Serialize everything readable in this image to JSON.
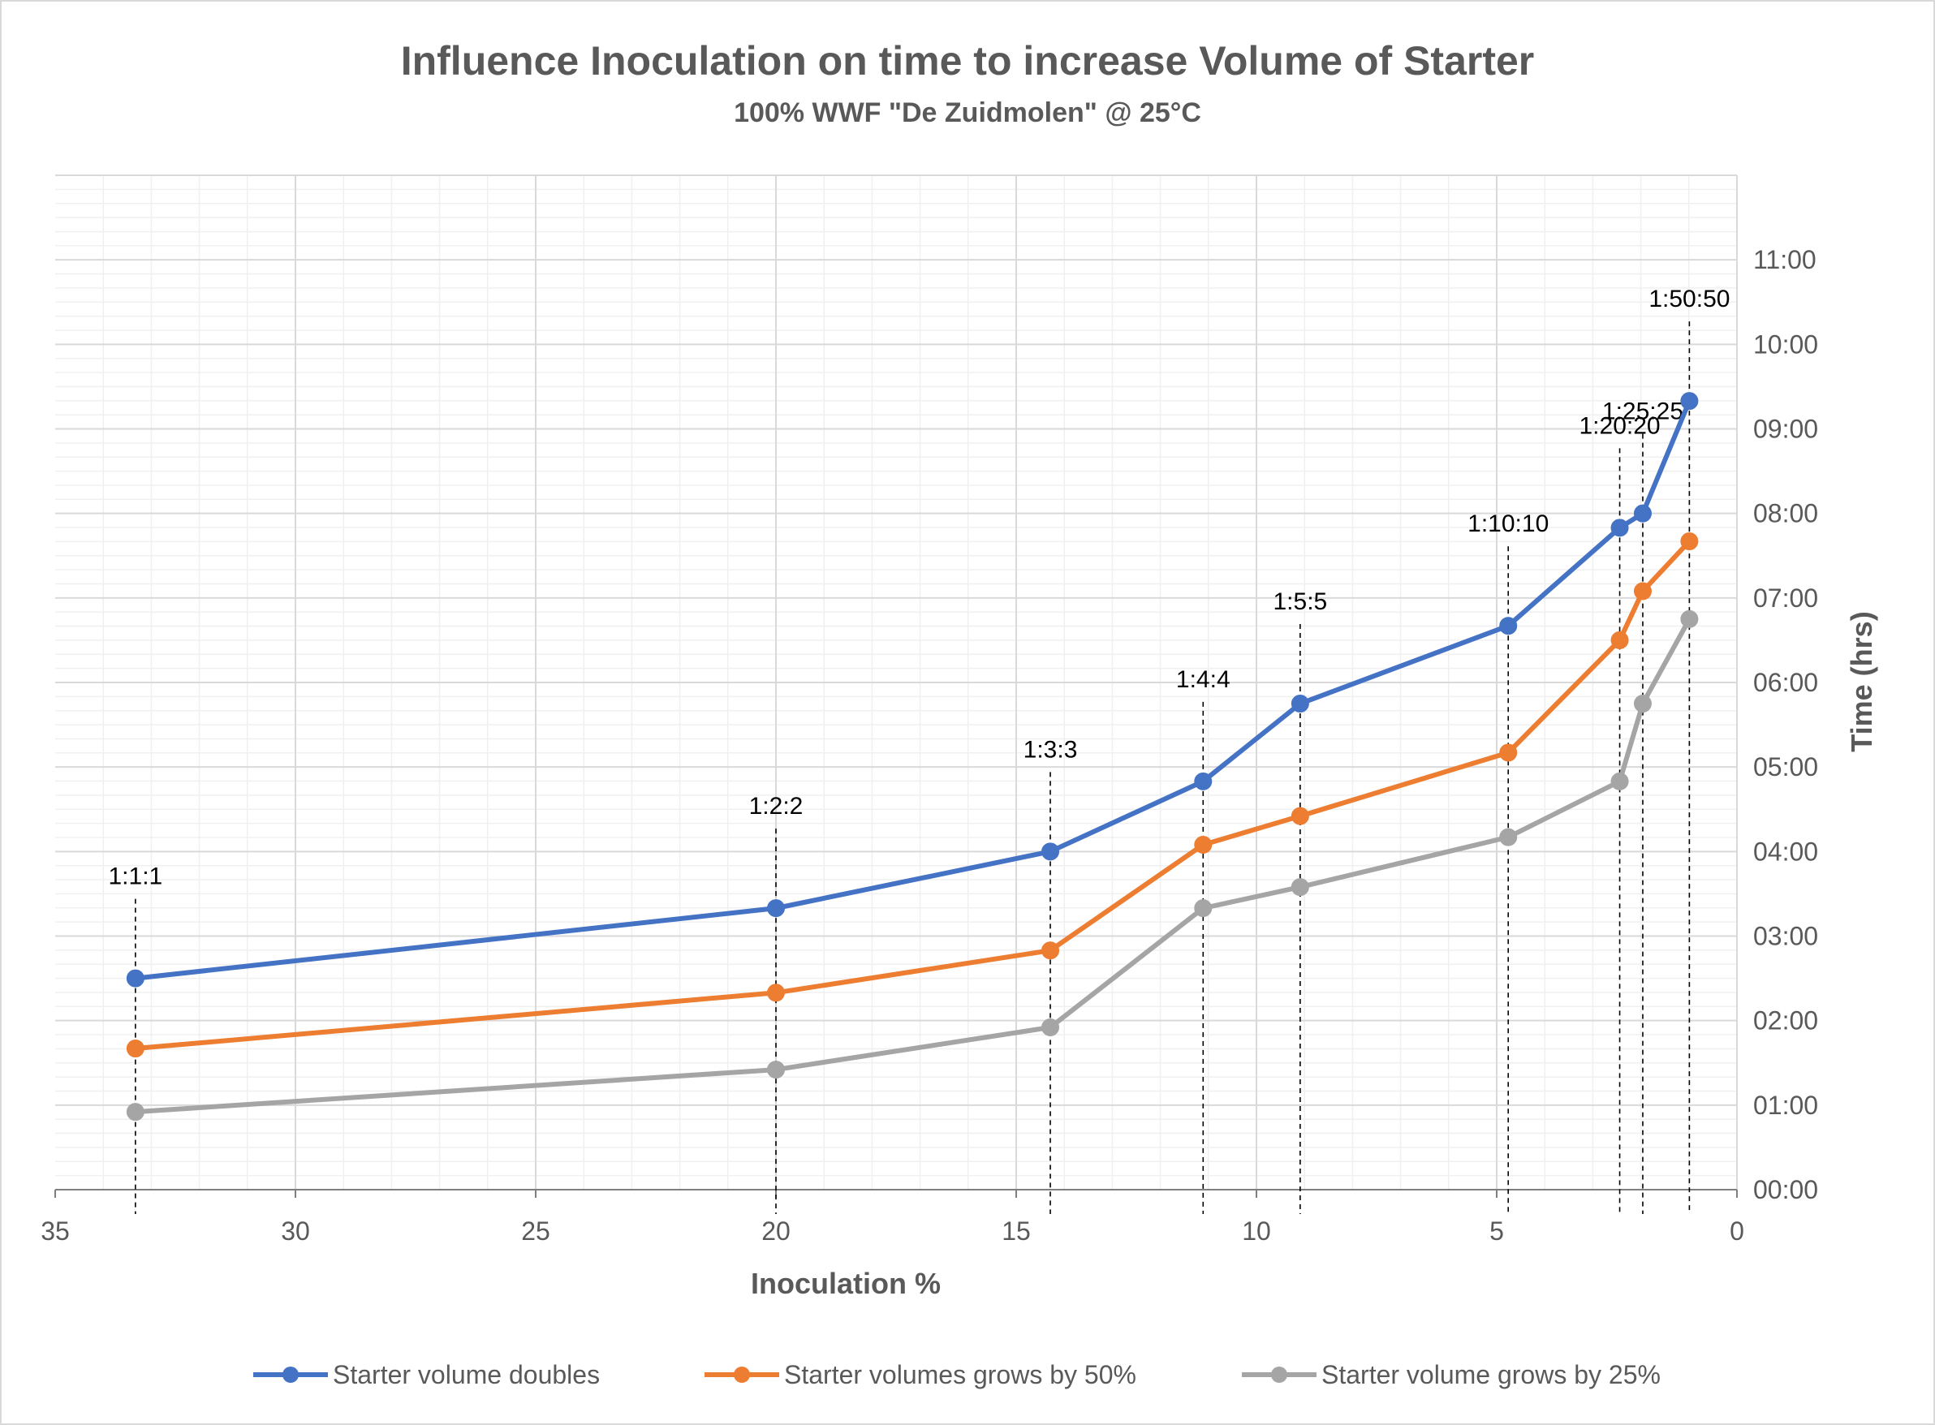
{
  "chart_data": {
    "type": "line",
    "title": "Influence Inoculation on time to increase Volume of Starter",
    "subtitle": "100% WWF \"De Zuidmolen\" @ 25°C",
    "xlabel": "Inoculation %",
    "ylabel": "Time (hrs)",
    "x_reversed": true,
    "xlim": [
      35,
      0
    ],
    "ylim": [
      0,
      12
    ],
    "x_ticks": [
      35,
      30,
      25,
      20,
      15,
      10,
      5,
      0
    ],
    "x_tick_labels": [
      "35",
      "30",
      "25",
      "20",
      "15",
      "10",
      "5",
      "0"
    ],
    "y_ticks": [
      0,
      1,
      2,
      3,
      4,
      5,
      6,
      7,
      8,
      9,
      10,
      11
    ],
    "y_tick_labels": [
      "00:00",
      "01:00",
      "02:00",
      "03:00",
      "04:00",
      "05:00",
      "06:00",
      "07:00",
      "08:00",
      "09:00",
      "10:00",
      "11:00"
    ],
    "y_axis_position": "right",
    "grid": true,
    "legend_position": "bottom",
    "x": [
      33.33,
      20,
      14.29,
      11.11,
      9.09,
      4.76,
      2.44,
      1.96,
      0.99
    ],
    "annotations": [
      {
        "label": "1:1:1",
        "x": 33.33
      },
      {
        "label": "1:2:2",
        "x": 20
      },
      {
        "label": "1:3:3",
        "x": 14.29
      },
      {
        "label": "1:4:4",
        "x": 11.11
      },
      {
        "label": "1:5:5",
        "x": 9.09
      },
      {
        "label": "1:10:10",
        "x": 4.76
      },
      {
        "label": "1:20:20",
        "x": 2.44
      },
      {
        "label": "1:25:25",
        "x": 1.96
      },
      {
        "label": "1:50:50",
        "x": 0.99
      }
    ],
    "series": [
      {
        "name": "Starter volume doubles",
        "color": "#4472C4",
        "values": [
          2.5,
          3.33,
          4.0,
          4.83,
          5.75,
          6.67,
          7.83,
          8.0,
          9.33
        ]
      },
      {
        "name": "Starter volumes grows by 50%",
        "color": "#ED7D31",
        "values": [
          1.67,
          2.33,
          2.83,
          4.08,
          4.42,
          5.17,
          6.5,
          7.08,
          7.67
        ]
      },
      {
        "name": "Starter volume grows by 25%",
        "color": "#A5A5A5",
        "values": [
          0.92,
          1.42,
          1.92,
          3.33,
          3.58,
          4.17,
          4.83,
          5.75,
          6.75
        ]
      }
    ]
  }
}
